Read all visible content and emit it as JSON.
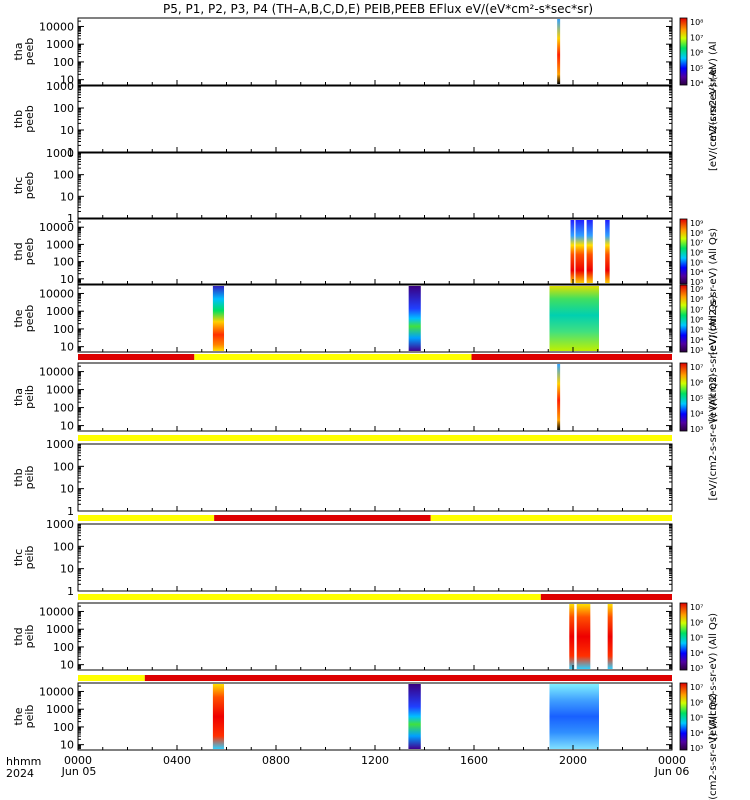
{
  "title": "P5, P1, P2, P3, P4 (TH–A,B,C,D,E) PEIB,PEEB EFlux eV/(eV*cm²-s*sec*sr)",
  "x_axis": {
    "ticks": [
      "0000",
      "0400",
      "0800",
      "1200",
      "1600",
      "2000",
      "0000"
    ],
    "start_date": "Jun 05",
    "end_date": "Jun 06",
    "label_line1": "hhmm",
    "label_line2": "2024"
  },
  "colors": {
    "quality_good": "#ffff00",
    "quality_bad": "#dd0000",
    "palette": "rainbow (purple-blue-cyan-green-yellow-red)"
  },
  "chart_data": {
    "type": "heatmap",
    "x_units": "hours UT",
    "x_range": [
      0,
      24
    ],
    "y_scale": "log",
    "panels": [
      {
        "id": "thc_peeb_a",
        "ylabel": [
          "tha",
          "peeb"
        ],
        "yticks": [
          "10000",
          "1000",
          "100",
          "10"
        ],
        "ylim": [
          5,
          30000
        ],
        "spectra": [
          {
            "x": [
              19.36,
              19.48
            ],
            "style": "spike"
          }
        ],
        "colorbar": {
          "ticks": [
            "10⁸",
            "10⁷",
            "10⁶",
            "10⁵",
            "10⁴"
          ],
          "unit": "eV/(cm2-s-sr-eV) (Al"
        }
      },
      {
        "id": "thb_peeb",
        "ylabel": [
          "thb",
          "peeb"
        ],
        "yticks": [
          "1000",
          "100",
          "10",
          "1"
        ],
        "ylim": [
          1,
          1000
        ],
        "spectra": [],
        "colorbar": null,
        "side_unit": "[eV/(cm2-s-sr-eV) (Al"
      },
      {
        "id": "thc_peeb",
        "ylabel": [
          "thc",
          "peeb"
        ],
        "yticks": [
          "1000",
          "100",
          "10",
          "1"
        ],
        "ylim": [
          1,
          1000
        ],
        "spectra": [],
        "colorbar": null
      },
      {
        "id": "thd_peeb",
        "ylabel": [
          "thd",
          "peeb"
        ],
        "yticks": [
          "10000",
          "1000",
          "100",
          "10"
        ],
        "ylim": [
          5,
          30000
        ],
        "spectra": [
          {
            "x": [
              19.9,
              20.05
            ],
            "style": "red-top-blue"
          },
          {
            "x": [
              20.1,
              20.45
            ],
            "style": "red-top-blue"
          },
          {
            "x": [
              20.55,
              20.8
            ],
            "style": "red-top-blue"
          },
          {
            "x": [
              21.3,
              21.48
            ],
            "style": "red-top-blue"
          }
        ],
        "colorbar": {
          "ticks": [
            "10⁹",
            "10⁸",
            "10⁷",
            "10⁶",
            "10⁵",
            "10⁴",
            "10³"
          ],
          "unit": "[eV/(cm2-s-sr-eV) (All Qs)"
        }
      },
      {
        "id": "the_peeb",
        "ylabel": [
          "the",
          "peeb"
        ],
        "yticks": [
          "10000",
          "1000",
          "100",
          "10"
        ],
        "ylim": [
          5,
          30000
        ],
        "spectra": [
          {
            "x": [
              5.45,
              5.9
            ],
            "style": "blue-top-red"
          },
          {
            "x": [
              13.36,
              13.85
            ],
            "style": "purple-band"
          },
          {
            "x": [
              19.05,
              21.05
            ],
            "style": "green-cyan"
          }
        ],
        "colorbar": {
          "ticks": [
            "10⁹",
            "10⁸",
            "10⁷",
            "10⁶",
            "10⁵",
            "10⁴",
            "10³"
          ],
          "unit": "[eV/(cm2-s-sr-eV) (All Qs)"
        }
      },
      {
        "id": "thg_peib",
        "ylabel": [
          "tha",
          "peib"
        ],
        "yticks": [
          "10000",
          "1000",
          "100",
          "10"
        ],
        "ylim": [
          5,
          30000
        ],
        "quality_bar": [
          {
            "x": [
              0,
              4.7
            ],
            "flag": "bad"
          },
          {
            "x": [
              4.7,
              15.9
            ],
            "flag": "good"
          },
          {
            "x": [
              15.9,
              24
            ],
            "flag": "bad"
          }
        ],
        "spectra": [
          {
            "x": [
              19.36,
              19.48
            ],
            "style": "spike"
          }
        ],
        "colorbar": {
          "ticks": [
            "10⁷",
            "10⁶",
            "10⁵",
            "10⁴",
            "10³"
          ],
          "unit": "[eV/(cm2-s-sr-eV) (All Qs)"
        }
      },
      {
        "id": "thb_peib",
        "ylabel": [
          "thb",
          "peib"
        ],
        "yticks": [
          "1000",
          "100",
          "10",
          "1"
        ],
        "ylim": [
          1,
          1000
        ],
        "quality_bar": [
          {
            "x": [
              0,
              24
            ],
            "flag": "good"
          }
        ],
        "spectra": [],
        "colorbar": null
      },
      {
        "id": "thc_peib",
        "ylabel": [
          "thc",
          "peib"
        ],
        "yticks": [
          "1000",
          "100",
          "10",
          "1"
        ],
        "ylim": [
          1,
          1000
        ],
        "quality_bar": [
          {
            "x": [
              0,
              5.5
            ],
            "flag": "good"
          },
          {
            "x": [
              5.5,
              14.25
            ],
            "flag": "bad"
          },
          {
            "x": [
              14.25,
              24
            ],
            "flag": "good"
          }
        ],
        "spectra": [],
        "colorbar": null
      },
      {
        "id": "thd_peib",
        "ylabel": [
          "thd",
          "peib"
        ],
        "yticks": [
          "10000",
          "1000",
          "100",
          "10"
        ],
        "ylim": [
          5,
          30000
        ],
        "quality_bar": [
          {
            "x": [
              0,
              18.7
            ],
            "flag": "good"
          },
          {
            "x": [
              18.7,
              24
            ],
            "flag": "bad"
          }
        ],
        "spectra": [
          {
            "x": [
              19.85,
              20.05
            ],
            "style": "red-core"
          },
          {
            "x": [
              20.15,
              20.7
            ],
            "style": "red-core"
          },
          {
            "x": [
              21.4,
              21.6
            ],
            "style": "red-core"
          }
        ],
        "colorbar": {
          "ticks": [
            "10⁷",
            "10⁶",
            "10⁵",
            "10⁴",
            "10³"
          ],
          "unit": "[eV/(cm2-s-sr-eV) (All Qs)"
        }
      },
      {
        "id": "the_peib",
        "ylabel": [
          "the",
          "peib"
        ],
        "yticks": [
          "10000",
          "1000",
          "100",
          "10"
        ],
        "ylim": [
          5,
          30000
        ],
        "quality_bar": [
          {
            "x": [
              0,
              2.7
            ],
            "flag": "good"
          },
          {
            "x": [
              2.7,
              24
            ],
            "flag": "bad"
          }
        ],
        "spectra": [
          {
            "x": [
              5.45,
              5.9
            ],
            "style": "red-core"
          },
          {
            "x": [
              13.35,
              13.85
            ],
            "style": "purple-band"
          },
          {
            "x": [
              19.05,
              21.05
            ],
            "style": "blue-cyan"
          }
        ],
        "colorbar": {
          "ticks": [
            "10⁷",
            "10⁶",
            "10⁵",
            "10⁴",
            "10³"
          ],
          "unit": "[eV/(cm2-s-sr-eV) (All Qs)"
        }
      }
    ]
  }
}
